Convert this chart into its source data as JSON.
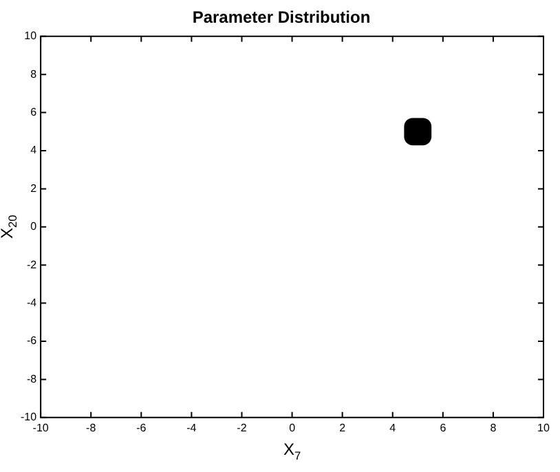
{
  "chart_data": {
    "type": "scatter",
    "title": "Parameter Distribution",
    "xlabel": "X$_{7}$",
    "ylabel": "X$_{20}$",
    "x": [
      5
    ],
    "values": [
      5
    ],
    "color": "#000000",
    "marker": "square",
    "xlim": [
      -10,
      10
    ],
    "ylim": [
      -10,
      10
    ],
    "xticks": [
      -10,
      -8,
      -6,
      -4,
      -2,
      0,
      2,
      4,
      6,
      8,
      10
    ],
    "yticks": [
      -10,
      -8,
      -6,
      -4,
      -2,
      0,
      2,
      4,
      6,
      8,
      10
    ],
    "grid": false,
    "legend": false
  }
}
